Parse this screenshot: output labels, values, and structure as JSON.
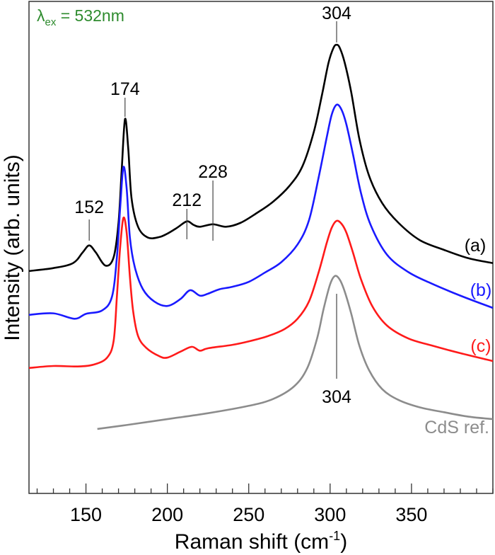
{
  "chart_data": {
    "type": "line",
    "xlabel": "Raman shift (cm",
    "xlabel_sup": "-1",
    "xlabel_end": ")",
    "ylabel": "Intensity (arb. units)",
    "xlim": [
      115,
      400
    ],
    "ylim": [
      0,
      100
    ],
    "x_ticks": [
      150,
      200,
      250,
      300,
      350
    ],
    "x_minor_step": 10,
    "grid": false,
    "annotation_excitation": {
      "symbol": "λ",
      "sub": "ex",
      "text": " = 532nm",
      "color": "#2e8b2e"
    },
    "series": [
      {
        "name": "(a)",
        "color": "#000000",
        "x": [
          115,
          130,
          142,
          148,
          152,
          156,
          162,
          167,
          170,
          172,
          174,
          176,
          178,
          182,
          188,
          195,
          200,
          206,
          212,
          216,
          220,
          228,
          236,
          245,
          255,
          265,
          275,
          283,
          290,
          295,
          299,
          302,
          304,
          306,
          309,
          313,
          318,
          324,
          332,
          342,
          355,
          370,
          385,
          400
        ],
        "y": [
          45.2,
          45.8,
          46.8,
          49.0,
          50.4,
          49.0,
          46.3,
          48.0,
          55.0,
          66.0,
          76.1,
          70.0,
          60.0,
          54.2,
          52.0,
          52.1,
          52.8,
          54.0,
          55.3,
          54.6,
          54.2,
          54.7,
          54.2,
          55.0,
          57.0,
          59.3,
          62.5,
          66.5,
          73.5,
          81.0,
          87.5,
          90.5,
          91.2,
          90.5,
          87.5,
          81.5,
          72.0,
          64.5,
          59.0,
          55.0,
          51.5,
          49.5,
          47.8,
          46.8
        ]
      },
      {
        "name": "(b)",
        "color": "#1a1aff",
        "x": [
          115,
          130,
          143,
          150,
          160,
          166,
          169,
          171,
          173,
          175,
          177,
          180,
          185,
          192,
          200,
          208,
          214,
          220,
          225,
          232,
          240,
          250,
          260,
          270,
          280,
          287,
          293,
          298,
          301,
          304,
          307,
          310,
          314,
          319,
          325,
          335,
          348,
          362,
          380,
          400
        ],
        "y": [
          36.3,
          36.6,
          35.5,
          36.5,
          37.2,
          40.0,
          48.0,
          58.0,
          66.3,
          62.0,
          52.0,
          46.0,
          41.5,
          39.0,
          38.1,
          39.5,
          41.3,
          40.2,
          40.6,
          41.5,
          42.0,
          43.0,
          44.9,
          47.0,
          50.6,
          55.5,
          64.3,
          72.5,
          77.0,
          79.0,
          78.0,
          75.0,
          69.0,
          61.0,
          54.5,
          48.5,
          45.0,
          42.7,
          40.2,
          37.7
        ]
      },
      {
        "name": "(c)",
        "color": "#ff1a1a",
        "x": [
          115,
          130,
          145,
          155,
          163,
          167,
          169,
          171,
          173,
          175,
          177,
          179,
          182,
          187,
          195,
          200,
          208,
          215,
          220,
          225,
          240,
          250,
          262,
          272,
          280,
          287,
          293,
          298,
          301,
          304,
          307,
          310,
          314,
          319,
          326,
          335,
          348,
          362,
          380,
          400
        ],
        "y": [
          25.5,
          25.9,
          25.8,
          26.2,
          27.6,
          31.0,
          40.0,
          50.0,
          56.0,
          53.0,
          44.0,
          37.0,
          32.0,
          29.6,
          27.9,
          27.6,
          28.8,
          29.8,
          29.0,
          29.5,
          30.2,
          30.9,
          32.0,
          33.4,
          35.5,
          39.0,
          45.0,
          51.0,
          54.0,
          55.4,
          54.8,
          53.0,
          49.0,
          43.5,
          38.0,
          34.1,
          31.5,
          30.1,
          28.5,
          26.9
        ]
      },
      {
        "name": "CdS ref.",
        "color": "#8c8c8c",
        "x": [
          157,
          175,
          200,
          225,
          250,
          265,
          278,
          286,
          292,
          296,
          300,
          303,
          306,
          309,
          313,
          318,
          324,
          332,
          342,
          355,
          370,
          385,
          400
        ],
        "y": [
          13.1,
          13.9,
          15.1,
          16.3,
          17.8,
          19.2,
          21.8,
          25.5,
          31.5,
          37.5,
          42.5,
          44.2,
          43.4,
          41.0,
          36.5,
          30.0,
          25.0,
          21.2,
          19.0,
          17.5,
          16.5,
          15.6,
          15.1
        ]
      }
    ],
    "peak_labels": [
      {
        "text": "152",
        "x": 152
      },
      {
        "text": "174",
        "x": 174
      },
      {
        "text": "212",
        "x": 212
      },
      {
        "text": "228",
        "x": 228
      },
      {
        "text": "304",
        "x": 304
      },
      {
        "text": "304",
        "x": 304
      }
    ]
  }
}
